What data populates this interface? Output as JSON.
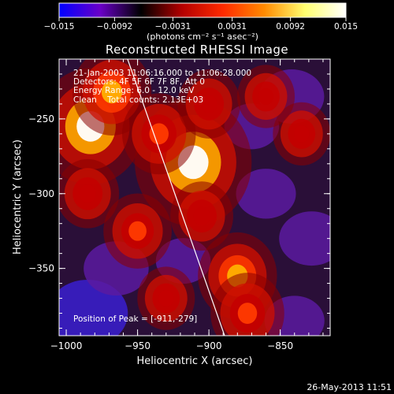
{
  "chart_data": {
    "type": "heatmap",
    "title": "Reconstructed RHESSI Image",
    "xlabel": "Heliocentric X (arcsec)",
    "ylabel": "Heliocentric Y (arcsec)",
    "xlim": [
      -1005,
      -815
    ],
    "ylim": [
      -395,
      -210
    ],
    "x_ticks": [
      {
        "value": -1000,
        "label": "−1000"
      },
      {
        "value": -950,
        "label": "−950"
      },
      {
        "value": -900,
        "label": "−900"
      },
      {
        "value": -850,
        "label": "−850"
      }
    ],
    "y_ticks": [
      {
        "value": -250,
        "label": "−250"
      },
      {
        "value": -300,
        "label": "−300"
      },
      {
        "value": -350,
        "label": "−350"
      }
    ],
    "colorbar": {
      "min": -0.015,
      "max": 0.015,
      "ticks": [
        {
          "value": -0.015,
          "label": "−0.015"
        },
        {
          "value": -0.0092,
          "label": "−0.0092"
        },
        {
          "value": -0.0031,
          "label": "−0.0031"
        },
        {
          "value": 0.0031,
          "label": "0.0031"
        },
        {
          "value": 0.0092,
          "label": "0.0092"
        },
        {
          "value": 0.015,
          "label": "0.015"
        }
      ],
      "unit_label": "(photons cm⁻² s⁻¹ asec⁻²)",
      "colors": [
        "#0000ff",
        "#6a00c8",
        "#000000",
        "#b40000",
        "#ff2a00",
        "#ff8a00",
        "#ffff70",
        "#ffffff"
      ]
    },
    "annotations": [
      "21-Jan-2003 11:06:16.000 to 11:06:28.000",
      "Detectors: 4F 5F 6F 7F 8F, Att 0",
      "Energy Range: 6.0 - 12.0 keV",
      "Clean    Total counts: 2.13E+03"
    ],
    "peak_label": "Position of Peak = [-911,-279]",
    "peak": [
      -911,
      -279
    ],
    "limb_line": [
      [
        -957,
        -210
      ],
      [
        -889,
        -395
      ]
    ],
    "limb_color": "#ffffff",
    "hotspots": [
      {
        "x": -911,
        "y": -279,
        "intensity": 0.015
      },
      {
        "x": -983,
        "y": -255,
        "intensity": 0.013
      },
      {
        "x": -968,
        "y": -232,
        "intensity": 0.008
      },
      {
        "x": -935,
        "y": -260,
        "intensity": 0.007
      },
      {
        "x": -880,
        "y": -355,
        "intensity": 0.008
      },
      {
        "x": -873,
        "y": -380,
        "intensity": 0.007
      },
      {
        "x": -950,
        "y": -325,
        "intensity": 0.006
      },
      {
        "x": -985,
        "y": -300,
        "intensity": 0.005
      },
      {
        "x": -905,
        "y": -315,
        "intensity": 0.005
      },
      {
        "x": -835,
        "y": -260,
        "intensity": 0.004
      },
      {
        "x": -860,
        "y": -235,
        "intensity": 0.004
      },
      {
        "x": -930,
        "y": -370,
        "intensity": 0.004
      },
      {
        "x": -900,
        "y": -240,
        "intensity": 0.005
      }
    ],
    "coldspots": [
      {
        "x": -985,
        "y": -380,
        "intensity": -0.009
      },
      {
        "x": -965,
        "y": -350,
        "intensity": -0.006
      },
      {
        "x": -842,
        "y": -235,
        "intensity": -0.006
      },
      {
        "x": -860,
        "y": -300,
        "intensity": -0.005
      },
      {
        "x": -828,
        "y": -330,
        "intensity": -0.006
      },
      {
        "x": -918,
        "y": -345,
        "intensity": -0.004
      },
      {
        "x": -870,
        "y": -255,
        "intensity": -0.004
      },
      {
        "x": -840,
        "y": -385,
        "intensity": -0.005
      }
    ]
  },
  "footer": {
    "timestamp": "26-May-2013 11:51"
  }
}
